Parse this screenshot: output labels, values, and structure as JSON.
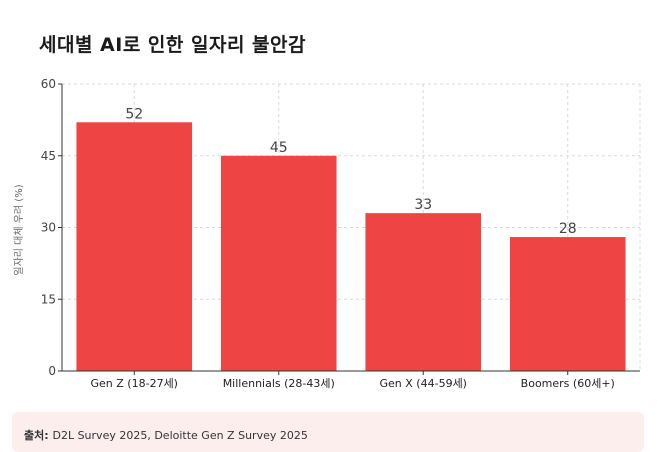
{
  "title": "세대별 AI로 인한 일자리 불안감",
  "source": {
    "label": "출처:",
    "text": "D2L Survey 2025, Deloitte Gen Z Survey 2025"
  },
  "colors": {
    "bar": "#ef4444",
    "grid": "#d9d9d9",
    "axis": "#333333",
    "source_bg": "#fdeeee"
  },
  "chart_data": {
    "type": "bar",
    "title": "세대별 AI로 인한 일자리 불안감",
    "xlabel": "",
    "ylabel": "일자리 대체 우려 (%)",
    "categories": [
      "Gen Z (18-27세)",
      "Millennials (28-43세)",
      "Gen X (44-59세)",
      "Boomers (60세+)"
    ],
    "values": [
      52,
      45,
      33,
      28
    ],
    "value_labels": [
      "52",
      "45",
      "33",
      "28"
    ],
    "ylim": [
      0,
      60
    ],
    "yticks": [
      "0",
      "15",
      "30",
      "45",
      "60"
    ],
    "grid": true,
    "legend": "none"
  }
}
